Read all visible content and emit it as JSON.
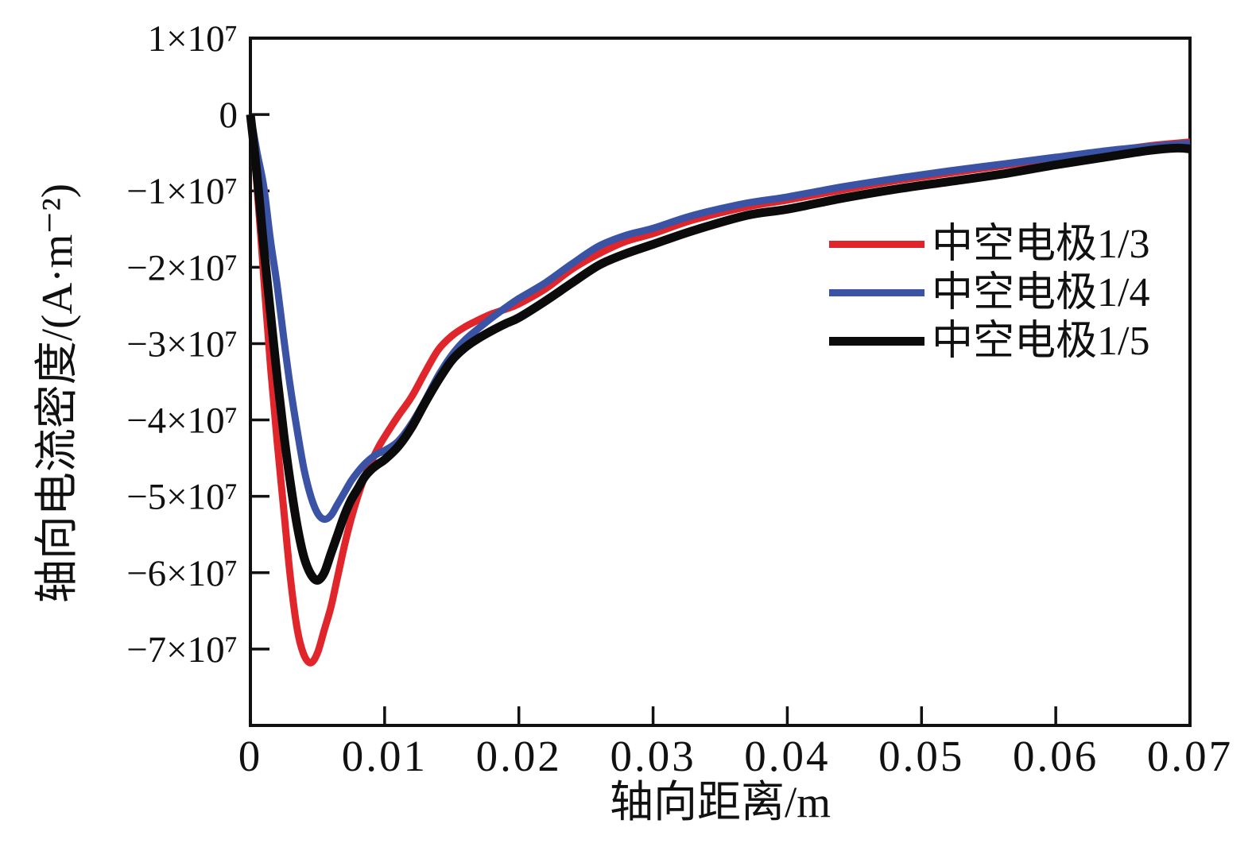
{
  "figure": {
    "background": "#ffffff",
    "axis_color": "#111111"
  },
  "chart_data": {
    "type": "line",
    "title": "",
    "xlabel": "轴向距离/m",
    "ylabel": "轴向电流密度/(A·m⁻²)",
    "xlim": [
      0,
      0.07
    ],
    "ylim": [
      -80000000.0,
      10000000.0
    ],
    "grid": false,
    "legend_position": "inside upper right",
    "x_ticks": [
      {
        "v": 0,
        "label": "0"
      },
      {
        "v": 0.01,
        "label": "0.01"
      },
      {
        "v": 0.02,
        "label": "0.02"
      },
      {
        "v": 0.03,
        "label": "0.03"
      },
      {
        "v": 0.04,
        "label": "0.04"
      },
      {
        "v": 0.05,
        "label": "0.05"
      },
      {
        "v": 0.06,
        "label": "0.06"
      },
      {
        "v": 0.07,
        "label": "0.07"
      }
    ],
    "y_ticks": [
      {
        "v": 10000000.0,
        "label": "1×10⁷"
      },
      {
        "v": 0,
        "label": "0"
      },
      {
        "v": -10000000.0,
        "label": "−1×10⁷"
      },
      {
        "v": -20000000.0,
        "label": "−2×10⁷"
      },
      {
        "v": -30000000.0,
        "label": "−3×10⁷"
      },
      {
        "v": -40000000.0,
        "label": "−4×10⁷"
      },
      {
        "v": -50000000.0,
        "label": "−5×10⁷"
      },
      {
        "v": -60000000.0,
        "label": "−6×10⁷"
      },
      {
        "v": -70000000.0,
        "label": "−7×10⁷"
      }
    ],
    "x": [
      0,
      0.0005,
      0.001,
      0.0015,
      0.002,
      0.0025,
      0.003,
      0.0035,
      0.004,
      0.0045,
      0.005,
      0.0055,
      0.006,
      0.0065,
      0.007,
      0.0075,
      0.008,
      0.0085,
      0.009,
      0.0095,
      0.01,
      0.011,
      0.012,
      0.013,
      0.014,
      0.015,
      0.016,
      0.017,
      0.018,
      0.019,
      0.02,
      0.022,
      0.024,
      0.026,
      0.028,
      0.03,
      0.033,
      0.037,
      0.04,
      0.044,
      0.048,
      0.052,
      0.056,
      0.06,
      0.064,
      0.067,
      0.069,
      0.07
    ],
    "series": [
      {
        "name": "中空电极1/3",
        "color": "#e0252b",
        "line_width": 9,
        "y": [
          0,
          -9500000.0,
          -21500000.0,
          -33000000.0,
          -43000000.0,
          -52000000.0,
          -61000000.0,
          -67500000.0,
          -70800000.0,
          -71800000.0,
          -70500000.0,
          -67500000.0,
          -64500000.0,
          -60500000.0,
          -56500000.0,
          -53000000.0,
          -50000000.0,
          -47500000.0,
          -45500000.0,
          -43700000.0,
          -42200000.0,
          -39500000.0,
          -37000000.0,
          -33800000.0,
          -30800000.0,
          -29000000.0,
          -27800000.0,
          -26900000.0,
          -26100000.0,
          -25500000.0,
          -24800000.0,
          -22800000.0,
          -20200000.0,
          -18200000.0,
          -16600000.0,
          -15600000.0,
          -13800000.0,
          -12100000.0,
          -11200000.0,
          -9900000.0,
          -8700000.0,
          -7700000.0,
          -6700000.0,
          -5700000.0,
          -4800000.0,
          -4100000.0,
          -3750000.0,
          -3600000.0
        ]
      },
      {
        "name": "中空电极1/4",
        "color": "#3a53a4",
        "line_width": 9,
        "y": [
          0,
          -5000000.0,
          -9500000.0,
          -16500000.0,
          -22500000.0,
          -29500000.0,
          -36000000.0,
          -41500000.0,
          -46500000.0,
          -50000000.0,
          -52200000.0,
          -53000000.0,
          -52500000.0,
          -51000000.0,
          -49500000.0,
          -48000000.0,
          -46800000.0,
          -45800000.0,
          -45000000.0,
          -44400000.0,
          -44000000.0,
          -42800000.0,
          -40500000.0,
          -37500000.0,
          -34200000.0,
          -31500000.0,
          -29500000.0,
          -28000000.0,
          -26600000.0,
          -25300000.0,
          -24100000.0,
          -22000000.0,
          -19500000.0,
          -17200000.0,
          -15800000.0,
          -14900000.0,
          -13200000.0,
          -11600000.0,
          -10800000.0,
          -9500000.0,
          -8400000.0,
          -7400000.0,
          -6500000.0,
          -5600000.0,
          -4700000.0,
          -4200000.0,
          -3900000.0,
          -3800000.0
        ]
      },
      {
        "name": "中空电极1/5",
        "color": "#0b0b0b",
        "line_width": 11,
        "y": [
          0,
          -8000000.0,
          -17500000.0,
          -26000000.0,
          -34500000.0,
          -42000000.0,
          -48500000.0,
          -54000000.0,
          -58000000.0,
          -60200000.0,
          -61000000.0,
          -60000000.0,
          -57500000.0,
          -55000000.0,
          -52500000.0,
          -50500000.0,
          -49000000.0,
          -47500000.0,
          -46500000.0,
          -45800000.0,
          -45200000.0,
          -43500000.0,
          -41000000.0,
          -37800000.0,
          -34800000.0,
          -32200000.0,
          -30500000.0,
          -29300000.0,
          -28300000.0,
          -27400000.0,
          -26600000.0,
          -24400000.0,
          -22000000.0,
          -19700000.0,
          -18200000.0,
          -17000000.0,
          -15200000.0,
          -13200000.0,
          -12400000.0,
          -11000000.0,
          -9800000.0,
          -8800000.0,
          -7800000.0,
          -6600000.0,
          -5500000.0,
          -4700000.0,
          -4400000.0,
          -4500000.0
        ]
      }
    ]
  }
}
